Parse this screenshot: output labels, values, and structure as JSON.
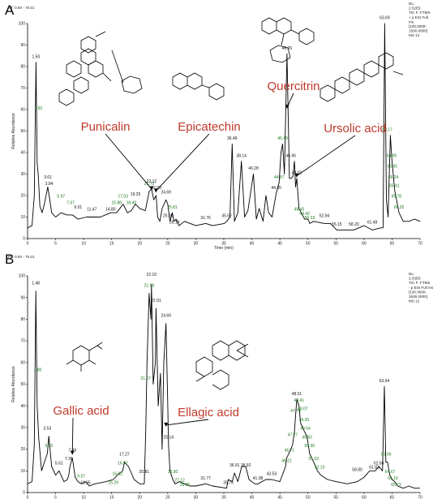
{
  "chart_data": [
    {
      "panel_label": "A",
      "type": "line",
      "rt_header": "RT: 0.00 - 70.01",
      "ylabel": "Relative Abundance",
      "xlabel": "Time (min)",
      "xlim": [
        0,
        70
      ],
      "ylim": [
        0,
        100
      ],
      "xticks": [
        "0",
        "5",
        "10",
        "15",
        "20",
        "25",
        "30",
        "35",
        "40",
        "45",
        "50",
        "55",
        "60",
        "65",
        "70"
      ],
      "yticks": [
        "0",
        "10",
        "20",
        "30",
        "40",
        "50",
        "60",
        "70",
        "80",
        "90",
        "100"
      ],
      "info": [
        "NL:",
        "2.52E9",
        "TIC F: FTMS",
        "+ p ESI Full",
        "ms",
        "[100.0000-",
        "1500.0000]",
        "MS 12"
      ],
      "x": [
        0,
        0.8,
        1.2,
        1.5,
        1.7,
        1.9,
        2.2,
        2.6,
        3.0,
        3.6,
        3.84,
        4.3,
        5.0,
        5.97,
        7.0,
        8.01,
        9.0,
        10.5,
        11.47,
        13.0,
        14.8,
        15.88,
        17.03,
        17.8,
        18.49,
        19.25,
        20.0,
        21.0,
        21.7,
        22.12,
        22.5,
        22.93,
        23.2,
        23.6,
        24.0,
        24.69,
        25.0,
        25.4,
        25.81,
        26.1,
        26.5,
        27.0,
        28.0,
        30.0,
        31.76,
        33.0,
        35.1,
        35.52,
        36.1,
        36.49,
        36.9,
        37.5,
        38.14,
        38.7,
        39.3,
        40.28,
        40.8,
        41.3,
        42.0,
        42.5,
        43.0,
        43.6,
        44.35,
        44.87,
        45.2,
        45.49,
        45.8,
        46.26,
        46.7,
        47.0,
        47.33,
        47.6,
        47.8,
        48.02,
        48.4,
        48.8,
        49.42,
        50.0,
        50.33,
        51.0,
        52.94,
        54.0,
        55.15,
        57.0,
        58.2,
        60.0,
        61.48,
        63.0,
        63.4,
        63.69,
        64.0,
        64.3,
        64.7,
        65.0,
        65.5,
        66.25,
        67.0,
        68.0,
        69.0,
        70.0
      ],
      "y": [
        5,
        6,
        20,
        82,
        35,
        30,
        15,
        12,
        16,
        24,
        20,
        12,
        10,
        12,
        11,
        11,
        9,
        10,
        10,
        10,
        12,
        12,
        16,
        12,
        13,
        16,
        14,
        13,
        22,
        23,
        18,
        20,
        10,
        8,
        14,
        18,
        16,
        8,
        12,
        8,
        9,
        6,
        8,
        6,
        7,
        6,
        7,
        8,
        10,
        44,
        8,
        12,
        36,
        10,
        13,
        30,
        9,
        14,
        8,
        20,
        12,
        10,
        21,
        26,
        40,
        44,
        30,
        86,
        28,
        28,
        29,
        36,
        24,
        28,
        14,
        12,
        9,
        9,
        7,
        8,
        7,
        7,
        4,
        4,
        4,
        6,
        4,
        5,
        5,
        100,
        18,
        10,
        48,
        36,
        22,
        12,
        8,
        8,
        9,
        8
      ],
      "peak_labels": [
        {
          "x": 1.5,
          "y": 84,
          "t": "1.50",
          "g": false
        },
        {
          "x": 1.92,
          "y": 60,
          "t": "1.92",
          "g": true
        },
        {
          "x": 3.61,
          "y": 28,
          "t": "3.61",
          "g": false
        },
        {
          "x": 3.84,
          "y": 25,
          "t": "3.84",
          "g": false
        },
        {
          "x": 5.97,
          "y": 19,
          "t": "5.97",
          "g": true
        },
        {
          "x": 7.67,
          "y": 16,
          "t": "7.67",
          "g": true
        },
        {
          "x": 9.01,
          "y": 14,
          "t": "9.01",
          "g": false
        },
        {
          "x": 11.47,
          "y": 13,
          "t": "11.47",
          "g": false
        },
        {
          "x": 14.8,
          "y": 13,
          "t": "14.80",
          "g": false
        },
        {
          "x": 15.88,
          "y": 16,
          "t": "15.88",
          "g": true
        },
        {
          "x": 17.03,
          "y": 19,
          "t": "17.03",
          "g": true
        },
        {
          "x": 18.49,
          "y": 16,
          "t": "18.49",
          "g": true
        },
        {
          "x": 19.25,
          "y": 20,
          "t": "19.25",
          "g": false
        },
        {
          "x": 21.7,
          "y": 25,
          "t": "21.70",
          "g": true
        },
        {
          "x": 22.12,
          "y": 26,
          "t": "22.12",
          "g": false
        },
        {
          "x": 22.93,
          "y": 23,
          "t": "22.93",
          "g": false
        },
        {
          "x": 24.69,
          "y": 21,
          "t": "24.69",
          "g": false
        },
        {
          "x": 25.05,
          "y": 10,
          "t": "25.05",
          "g": false
        },
        {
          "x": 25.81,
          "y": 14,
          "t": "25.81",
          "g": true
        },
        {
          "x": 26.19,
          "y": 7,
          "t": "26.19",
          "g": false
        },
        {
          "x": 31.76,
          "y": 9,
          "t": "31.76",
          "g": false
        },
        {
          "x": 35.52,
          "y": 10,
          "t": "35.52",
          "g": false
        },
        {
          "x": 36.49,
          "y": 46,
          "t": "36.49",
          "g": false
        },
        {
          "x": 38.14,
          "y": 38,
          "t": "38.14",
          "g": false
        },
        {
          "x": 40.28,
          "y": 32,
          "t": "40.28",
          "g": false
        },
        {
          "x": 44.35,
          "y": 23,
          "t": "44.35",
          "g": false
        },
        {
          "x": 44.87,
          "y": 28,
          "t": "44.87",
          "g": true
        },
        {
          "x": 45.49,
          "y": 46,
          "t": "45.49",
          "g": true
        },
        {
          "x": 46.26,
          "y": 88,
          "t": "46.26",
          "g": false
        },
        {
          "x": 46.96,
          "y": 38,
          "t": "46.96",
          "g": false
        },
        {
          "x": 48.02,
          "y": 30,
          "t": "48.02",
          "g": false
        },
        {
          "x": 48.45,
          "y": 13,
          "t": "48.45",
          "g": true
        },
        {
          "x": 49.42,
          "y": 11,
          "t": "49.42",
          "g": true
        },
        {
          "x": 50.33,
          "y": 9,
          "t": "50.33",
          "g": true
        },
        {
          "x": 52.94,
          "y": 10,
          "t": "52.94",
          "g": false
        },
        {
          "x": 55.15,
          "y": 6,
          "t": "55.15",
          "g": false
        },
        {
          "x": 58.2,
          "y": 6,
          "t": "58.20",
          "g": false
        },
        {
          "x": 61.48,
          "y": 7,
          "t": "61.48",
          "g": false
        },
        {
          "x": 63.69,
          "y": 102,
          "t": "63.69",
          "g": false
        },
        {
          "x": 64.17,
          "y": 50,
          "t": "64.17",
          "g": true
        },
        {
          "x": 64.95,
          "y": 38,
          "t": "64.95",
          "g": true
        },
        {
          "x": 65.05,
          "y": 33,
          "t": "65.05",
          "g": true
        },
        {
          "x": 65.24,
          "y": 28,
          "t": "65.24",
          "g": true
        },
        {
          "x": 65.41,
          "y": 24,
          "t": "65.41",
          "g": true
        },
        {
          "x": 65.78,
          "y": 19,
          "t": "65.78",
          "g": true
        },
        {
          "x": 66.25,
          "y": 14,
          "t": "66.25",
          "g": true
        }
      ],
      "annotations": [
        {
          "text": "Punicalin",
          "tx": 22.1,
          "ty": 22
        },
        {
          "text": "Epicatechin",
          "tx": 22.9,
          "ty": 21
        },
        {
          "text": "Quercitrin",
          "tx": 46.3,
          "ty": 60
        },
        {
          "text": "Ursolic acid",
          "tx": 48.0,
          "ty": 28
        }
      ]
    },
    {
      "panel_label": "B",
      "type": "line",
      "rt_header": "RT: 0.00 - 70.01",
      "ylabel": "Relative Abundance",
      "xlabel": "Time (min)",
      "xlim": [
        0,
        70
      ],
      "ylim": [
        0,
        100
      ],
      "xticks": [
        "0",
        "5",
        "10",
        "15",
        "20",
        "25",
        "30",
        "35",
        "40",
        "45",
        "50",
        "55",
        "60",
        "65",
        "70"
      ],
      "yticks": [
        "0",
        "10",
        "20",
        "30",
        "40",
        "50",
        "60",
        "70",
        "80",
        "90",
        "100"
      ],
      "info": [
        "NL:",
        "2.03E9",
        "TIC F: FTMS",
        "- p ESI Full ms",
        "[100.0000-",
        "1500.0000]",
        "MS 12"
      ],
      "x": [
        0,
        0.8,
        1.2,
        1.48,
        1.7,
        2.0,
        2.5,
        3.0,
        3.53,
        3.79,
        4.3,
        5.0,
        5.61,
        6.5,
        7.1,
        7.35,
        7.55,
        7.99,
        8.5,
        9.0,
        9.57,
        10.35,
        11.0,
        12.0,
        14.0,
        15.29,
        16.0,
        16.97,
        17.27,
        18.0,
        19.0,
        20.0,
        20.81,
        21.07,
        21.3,
        21.68,
        22.0,
        22.1,
        22.4,
        22.8,
        22.91,
        23.3,
        23.7,
        24.0,
        24.3,
        24.69,
        25.0,
        25.14,
        25.4,
        25.9,
        26.3,
        27.12,
        28.0,
        28.95,
        30.0,
        31.77,
        33.0,
        35.5,
        35.79,
        36.5,
        36.91,
        37.5,
        38.2,
        38.92,
        39.5,
        40.5,
        41.08,
        42.5,
        43.53,
        45.0,
        46.0,
        46.21,
        46.6,
        47.27,
        47.6,
        47.79,
        48.01,
        48.41,
        48.7,
        49.07,
        49.4,
        49.83,
        50.3,
        51.02,
        51.7,
        52.3,
        53.5,
        55.0,
        57.0,
        58.8,
        60.0,
        61.0,
        62.0,
        62.66,
        63.3,
        63.64,
        63.9,
        64.2,
        64.6,
        65.0,
        65.5,
        66.0,
        67.0,
        68.0,
        69.0,
        70.0
      ],
      "y": [
        4,
        5,
        22,
        93,
        40,
        25,
        10,
        14,
        18,
        26,
        12,
        8,
        10,
        5,
        6,
        8,
        12,
        16,
        7,
        5,
        4,
        5,
        3,
        4,
        5,
        6,
        8,
        10,
        14,
        12,
        6,
        4,
        4,
        28,
        60,
        92,
        80,
        96,
        50,
        60,
        85,
        40,
        55,
        20,
        60,
        78,
        40,
        22,
        10,
        6,
        4,
        5,
        4,
        3,
        3,
        4,
        3,
        2,
        6,
        5,
        9,
        5,
        12,
        12,
        6,
        4,
        4,
        6,
        6,
        5,
        12,
        16,
        18,
        22,
        28,
        35,
        43,
        40,
        32,
        30,
        28,
        26,
        18,
        14,
        10,
        8,
        6,
        5,
        4,
        5,
        7,
        10,
        10,
        12,
        10,
        49,
        14,
        14,
        8,
        6,
        5,
        3,
        2,
        3,
        2,
        2
      ],
      "peak_labels": [
        {
          "x": 1.48,
          "y": 96,
          "t": "1.48",
          "g": false
        },
        {
          "x": 1.8,
          "y": 56,
          "t": "1.80",
          "g": true
        },
        {
          "x": 3.53,
          "y": 29,
          "t": "3.53",
          "g": false
        },
        {
          "x": 3.79,
          "y": 21,
          "t": "3.79",
          "g": true
        },
        {
          "x": 5.61,
          "y": 13,
          "t": "5.61",
          "g": false
        },
        {
          "x": 7.35,
          "y": 15,
          "t": "7.35",
          "g": false
        },
        {
          "x": 7.99,
          "y": 19,
          "t": "7.99",
          "g": false
        },
        {
          "x": 9.57,
          "y": 7,
          "t": "9.57",
          "g": true
        },
        {
          "x": 10.35,
          "y": 4,
          "t": "10.35",
          "g": false
        },
        {
          "x": 15.29,
          "y": 4,
          "t": "15.29",
          "g": true
        },
        {
          "x": 16.02,
          "y": 8,
          "t": "16.02",
          "g": true
        },
        {
          "x": 16.97,
          "y": 13,
          "t": "16.97",
          "g": true
        },
        {
          "x": 17.27,
          "y": 17,
          "t": "17.27",
          "g": false
        },
        {
          "x": 20.81,
          "y": 9,
          "t": "20.81",
          "g": false
        },
        {
          "x": 21.07,
          "y": 52,
          "t": "21.07",
          "g": true
        },
        {
          "x": 21.68,
          "y": 95,
          "t": "21.68",
          "g": true
        },
        {
          "x": 22.1,
          "y": 100,
          "t": "22.10",
          "g": false
        },
        {
          "x": 22.91,
          "y": 88,
          "t": "22.91",
          "g": false
        },
        {
          "x": 24.69,
          "y": 81,
          "t": "24.69",
          "g": false
        },
        {
          "x": 25.14,
          "y": 25,
          "t": "25.14",
          "g": false
        },
        {
          "x": 25.9,
          "y": 9,
          "t": "25.90",
          "g": true
        },
        {
          "x": 27.12,
          "y": 5,
          "t": "27.12",
          "g": true
        },
        {
          "x": 28.05,
          "y": 3,
          "t": "28.05",
          "g": true
        },
        {
          "x": 31.77,
          "y": 6,
          "t": "31.77",
          "g": false
        },
        {
          "x": 35.79,
          "y": 4,
          "t": "35.79",
          "g": false
        },
        {
          "x": 36.91,
          "y": 12,
          "t": "36.91",
          "g": false
        },
        {
          "x": 38.92,
          "y": 12,
          "t": "38.92",
          "g": false
        },
        {
          "x": 41.08,
          "y": 6,
          "t": "41.08",
          "g": false
        },
        {
          "x": 43.53,
          "y": 8,
          "t": "43.53",
          "g": false
        },
        {
          "x": 46.21,
          "y": 14,
          "t": "46.21",
          "g": true
        },
        {
          "x": 46.71,
          "y": 19,
          "t": "46.71",
          "g": true
        },
        {
          "x": 47.27,
          "y": 26,
          "t": "47.27",
          "g": true
        },
        {
          "x": 47.79,
          "y": 37,
          "t": "47.79",
          "g": true
        },
        {
          "x": 48.01,
          "y": 45,
          "t": "48.01",
          "g": false
        },
        {
          "x": 48.41,
          "y": 42,
          "t": "48.41",
          "g": true
        },
        {
          "x": 49.07,
          "y": 38,
          "t": "49.07",
          "g": true
        },
        {
          "x": 49.3,
          "y": 33,
          "t": "49.30",
          "g": true
        },
        {
          "x": 49.54,
          "y": 29,
          "t": "49.54",
          "g": true
        },
        {
          "x": 49.83,
          "y": 25,
          "t": "49.83",
          "g": true
        },
        {
          "x": 50.3,
          "y": 21,
          "t": "50.30",
          "g": true
        },
        {
          "x": 51.02,
          "y": 15,
          "t": "51.02",
          "g": true
        },
        {
          "x": 52.1,
          "y": 11,
          "t": "52.10",
          "g": true
        },
        {
          "x": 58.8,
          "y": 10,
          "t": "58.80",
          "g": false
        },
        {
          "x": 61.83,
          "y": 11,
          "t": "61.83",
          "g": false
        },
        {
          "x": 62.66,
          "y": 13,
          "t": "62.66",
          "g": false
        },
        {
          "x": 63.64,
          "y": 51,
          "t": "63.64",
          "g": false
        },
        {
          "x": 63.96,
          "y": 17,
          "t": "63.96",
          "g": true
        },
        {
          "x": 64.67,
          "y": 9,
          "t": "64.67",
          "g": true
        },
        {
          "x": 65.16,
          "y": 6,
          "t": "65.16",
          "g": true
        },
        {
          "x": 65.73,
          "y": 3,
          "t": "65.73",
          "g": true
        }
      ],
      "annotations": [
        {
          "text": "Gallic acid",
          "tx": 7.99,
          "ty": 17
        },
        {
          "text": "Ellagic acid",
          "tx": 24.69,
          "ty": 30
        }
      ]
    }
  ],
  "colors": {
    "trace": "#000000",
    "callout": "#c0392b",
    "green_label": "#1a7a1a"
  }
}
